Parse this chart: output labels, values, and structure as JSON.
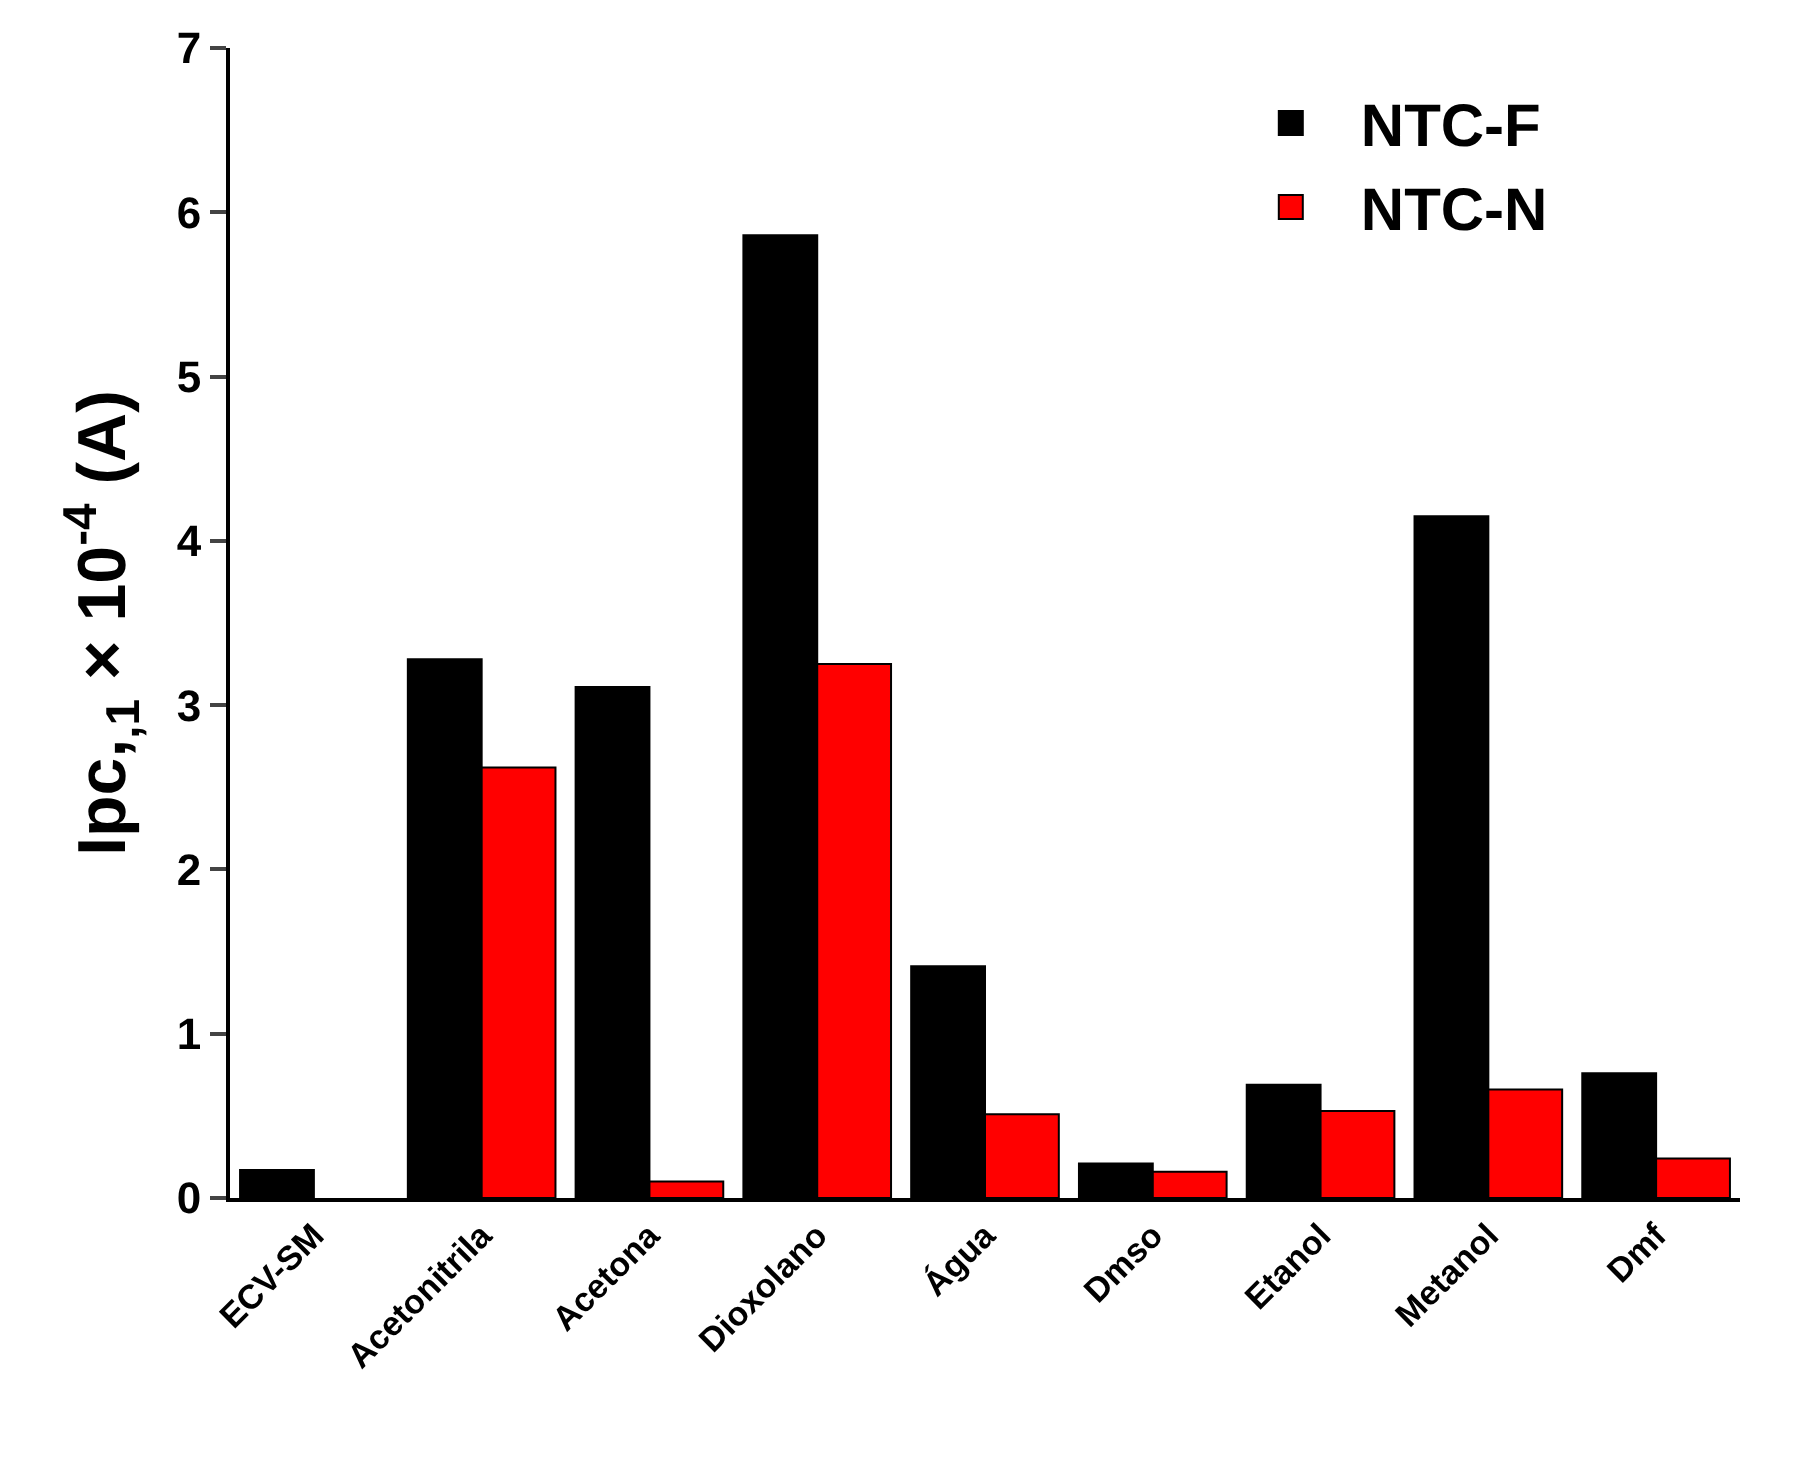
{
  "chart_data": {
    "type": "bar",
    "ylabel": "Ipc,$_{,1}$ × 10$^{-4}$ (A)",
    "categories": [
      "ECV-SM",
      "Acetonitrila",
      "Acetona",
      "Dioxolano",
      "Água",
      "Dmso",
      "Etanol",
      "Metanol",
      "Dmf"
    ],
    "series": [
      {
        "name": "NTC-F",
        "color": "#000000",
        "values": [
          0.17,
          3.28,
          3.11,
          5.86,
          1.41,
          0.21,
          0.69,
          4.15,
          0.76
        ]
      },
      {
        "name": "NTC-N",
        "color": "#ff0000",
        "values": [
          null,
          2.62,
          0.1,
          3.25,
          0.51,
          0.16,
          0.53,
          0.66,
          0.24
        ]
      }
    ],
    "ylim": [
      0,
      7
    ],
    "yticks": [
      0,
      1,
      2,
      3,
      4,
      5,
      6,
      7
    ],
    "legend": "top right"
  }
}
